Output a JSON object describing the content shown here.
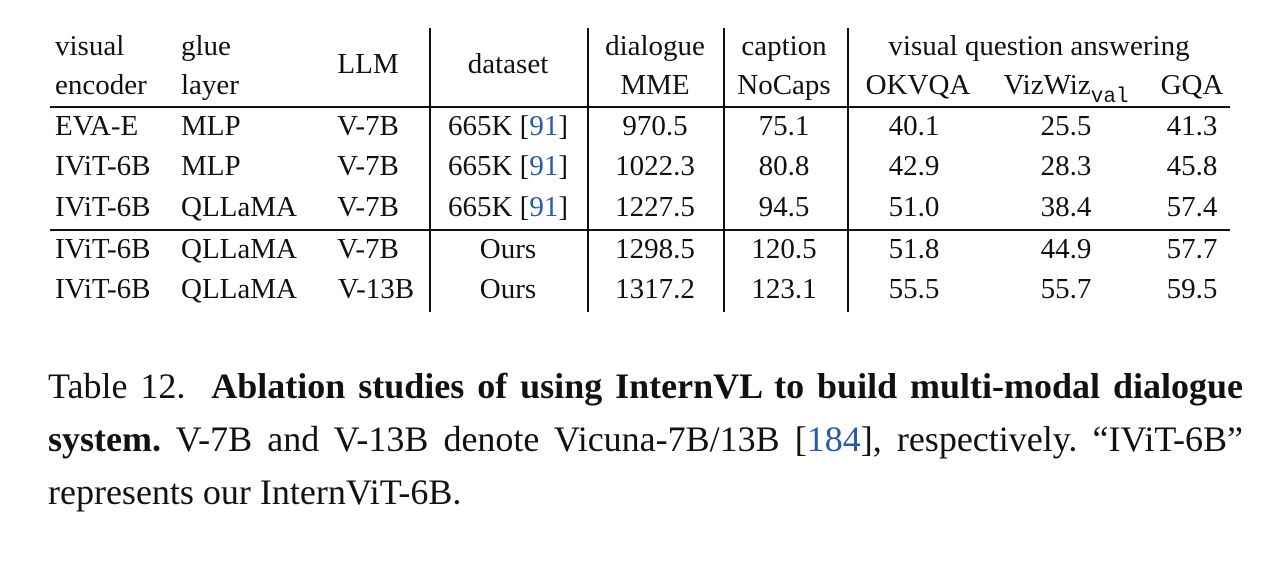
{
  "table": {
    "headers": {
      "visual_encoder": [
        "visual",
        "encoder"
      ],
      "glue_layer": [
        "glue",
        "layer"
      ],
      "llm": "LLM",
      "dataset": "dataset",
      "group_dialogue": "dialogue",
      "mme": "MME",
      "group_caption": "caption",
      "nocaps": "NoCaps",
      "group_vqa": "visual question answering",
      "okvqa": "OKVQA",
      "vizwiz": "VizWiz",
      "vizwiz_sub": "val",
      "gqa": "GQA"
    },
    "rows": [
      {
        "encoder": "EVA-E",
        "glue": "MLP",
        "llm": "V-7B",
        "dataset": "665K [",
        "dataset_ref": "91",
        "dataset_close": "]",
        "mme": "970.5",
        "nocaps": "75.1",
        "okvqa": "40.1",
        "vizwiz": "25.5",
        "gqa": "41.3"
      },
      {
        "encoder": "IViT-6B",
        "glue": "MLP",
        "llm": "V-7B",
        "dataset": "665K [",
        "dataset_ref": "91",
        "dataset_close": "]",
        "mme": "1022.3",
        "nocaps": "80.8",
        "okvqa": "42.9",
        "vizwiz": "28.3",
        "gqa": "45.8"
      },
      {
        "encoder": "IViT-6B",
        "glue": "QLLaMA",
        "llm": "V-7B",
        "dataset": "665K [",
        "dataset_ref": "91",
        "dataset_close": "]",
        "mme": "1227.5",
        "nocaps": "94.5",
        "okvqa": "51.0",
        "vizwiz": "38.4",
        "gqa": "57.4"
      },
      {
        "encoder": "IViT-6B",
        "glue": "QLLaMA",
        "llm": "V-7B",
        "dataset": "Ours",
        "dataset_ref": "",
        "dataset_close": "",
        "mme": "1298.5",
        "nocaps": "120.5",
        "okvqa": "51.8",
        "vizwiz": "44.9",
        "gqa": "57.7"
      },
      {
        "encoder": "IViT-6B",
        "glue": "QLLaMA",
        "llm": "V-13B",
        "dataset": "Ours",
        "dataset_ref": "",
        "dataset_close": "",
        "mme": "1317.2",
        "nocaps": "123.1",
        "okvqa": "55.5",
        "vizwiz": "55.7",
        "gqa": "59.5"
      }
    ]
  },
  "caption": {
    "label": "Table 12.",
    "bold": "Ablation studies of using InternVL to build multi-modal dialogue system.",
    "text1": "V-7B and V-13B denote Vicuna-7B/13B [",
    "ref": "184",
    "text2": "], respectively. “IViT-6B” represents our InternViT-6B."
  }
}
